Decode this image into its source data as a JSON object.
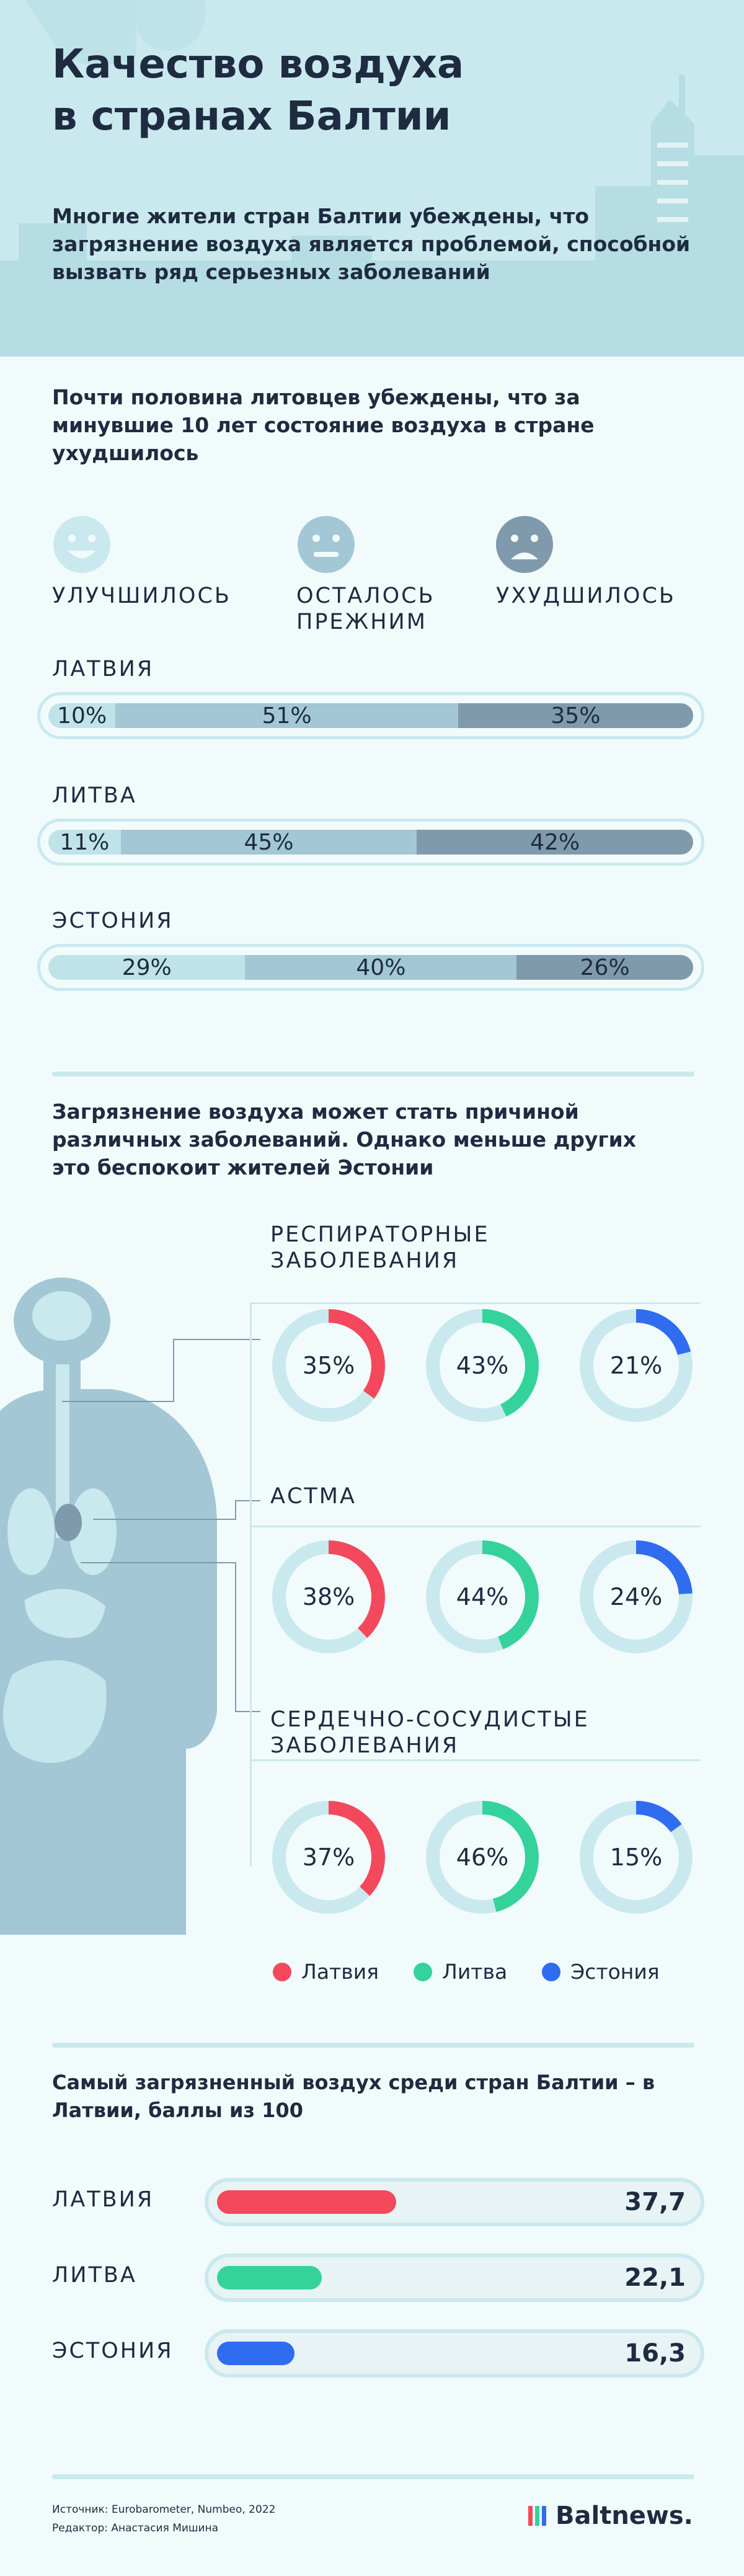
{
  "header": {
    "title_line1": "Качество воздуха",
    "title_line2": "в странах Балтии",
    "intro": "Многие жители стран Балтии убеждены, что загрязнение воздуха является проблемой, способной вызвать ряд серьезных заболеваний"
  },
  "survey": {
    "heading": "Почти половина литовцев убеждены, что за минувшие 10 лет состояние воздуха в стране ухудшилось",
    "options": [
      "УЛУЧШИЛОСЬ",
      "ОСТАЛОСЬ ПРЕЖНИМ",
      "УХУДШИЛОСЬ"
    ],
    "icons": [
      "happy-face-icon",
      "neutral-face-icon",
      "sad-face-icon"
    ]
  },
  "diseases": {
    "heading": "Загрязнение воздуха может стать причиной различных заболеваний. Однако меньше других это беспокоит жителей Эстонии",
    "legend": [
      {
        "label": "Латвия",
        "color": "#f4485c"
      },
      {
        "label": "Литва",
        "color": "#34d39b"
      },
      {
        "label": "Эстония",
        "color": "#2f6cf0"
      }
    ]
  },
  "pollution": {
    "heading": "Самый загрязненный воздух среди стран Балтии – в Латвии, баллы из 100"
  },
  "footer": {
    "sources": "Источник: Eurobarometer, Numbeo, 2022",
    "editor": "Редактор: Анастасия Мишина",
    "logo": "Baltnews."
  },
  "chart_data": [
    {
      "type": "bar",
      "stacked": true,
      "orientation": "horizontal",
      "categories": [
        "ЛАТВИЯ",
        "ЛИТВА",
        "ЭСТОНИЯ"
      ],
      "series": [
        {
          "name": "УЛУЧШИЛОСЬ",
          "values": [
            10,
            11,
            29
          ],
          "color": "#bfe3e8"
        },
        {
          "name": "ОСТАЛОСЬ ПРЕЖНИМ",
          "values": [
            51,
            45,
            40
          ],
          "color": "#a3c7d4"
        },
        {
          "name": "УХУДШИЛОСЬ",
          "values": [
            35,
            42,
            26
          ],
          "color": "#7f9aac"
        }
      ],
      "unit": "%"
    },
    {
      "type": "pie",
      "variant": "donut",
      "categories": [
        "РЕСПИРАТОРНЫЕ ЗАБОЛЕВАНИЯ",
        "АСТМА",
        "СЕРДЕЧНО-СОСУДИСТЫЕ ЗАБОЛЕВАНИЯ"
      ],
      "series": [
        {
          "name": "Латвия",
          "values": [
            35,
            38,
            37
          ],
          "color": "#f4485c"
        },
        {
          "name": "Литва",
          "values": [
            43,
            44,
            46
          ],
          "color": "#34d39b"
        },
        {
          "name": "Эстония",
          "values": [
            21,
            24,
            15
          ],
          "color": "#2f6cf0"
        }
      ],
      "unit": "%"
    },
    {
      "type": "bar",
      "orientation": "horizontal",
      "categories": [
        "ЛАТВИЯ",
        "ЛИТВА",
        "ЭСТОНИЯ"
      ],
      "values": [
        37.7,
        22.1,
        16.3
      ],
      "labels": [
        "37,7",
        "22,1",
        "16,3"
      ],
      "colors": [
        "#f4485c",
        "#34d39b",
        "#2f6cf0"
      ],
      "xlim": [
        0,
        100
      ]
    }
  ]
}
